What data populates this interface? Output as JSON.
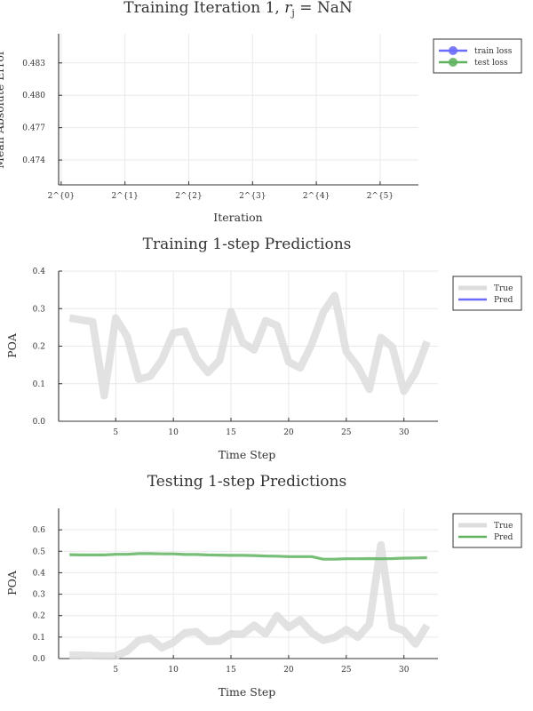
{
  "chart_data": [
    {
      "type": "line",
      "title": "Training Iteration 1, ",
      "title_symbol": "r",
      "title_subscript": "j",
      "title_value": " = NaN",
      "xlabel": "Iteration",
      "ylabel": "Mean Absolute Error",
      "x_tick_labels": [
        "2^{0}",
        "2^{1}",
        "2^{2}",
        "2^{3}",
        "2^{4}",
        "2^{5}"
      ],
      "x_scale": "log2",
      "y_ticks": [
        0.474,
        0.477,
        0.48,
        0.483
      ],
      "y_tick_labels": [
        "0.474",
        "0.477",
        "0.480",
        "0.483"
      ],
      "ylim": [
        0.4717,
        0.4857
      ],
      "grid": true,
      "legend_position": "top-right (outside)",
      "series": [
        {
          "name": "train loss",
          "color": "#6b6bff",
          "marker": "circle",
          "x": [],
          "y": []
        },
        {
          "name": "test loss",
          "color": "#5fb35f",
          "marker": "circle",
          "x": [],
          "y": []
        }
      ]
    },
    {
      "type": "line",
      "title": "Training 1-step Predictions",
      "xlabel": "Time Step",
      "ylabel": "POA",
      "x_ticks": [
        5,
        10,
        15,
        20,
        25,
        30
      ],
      "x_tick_labels": [
        "5",
        "10",
        "15",
        "20",
        "25",
        "30"
      ],
      "xlim": [
        0.05,
        32.95
      ],
      "y_ticks": [
        0.0,
        0.1,
        0.2,
        0.3,
        0.4
      ],
      "y_tick_labels": [
        "0.0",
        "0.1",
        "0.2",
        "0.3",
        "0.4"
      ],
      "ylim": [
        0,
        0.4
      ],
      "grid": true,
      "legend_position": "top-right (outside)",
      "series": [
        {
          "name": "True",
          "color": "#dddddd",
          "line_width": "thick",
          "x": [
            1,
            2,
            3,
            4,
            5,
            6,
            7,
            8,
            9,
            10,
            11,
            12,
            13,
            14,
            15,
            16,
            17,
            18,
            19,
            20,
            21,
            22,
            23,
            24,
            25,
            26,
            27,
            28,
            29,
            30,
            31,
            32
          ],
          "y": [
            0.275,
            0.27,
            0.265,
            0.068,
            0.275,
            0.225,
            0.112,
            0.12,
            0.163,
            0.235,
            0.24,
            0.168,
            0.13,
            0.162,
            0.292,
            0.21,
            0.19,
            0.268,
            0.255,
            0.158,
            0.142,
            0.205,
            0.29,
            0.335,
            0.185,
            0.145,
            0.085,
            0.223,
            0.198,
            0.08,
            0.13,
            0.212
          ]
        },
        {
          "name": "Pred",
          "color": "#6b6bff",
          "line_width": "medium",
          "x": [],
          "y": []
        }
      ]
    },
    {
      "type": "line",
      "title": "Testing 1-step Predictions",
      "xlabel": "Time Step",
      "ylabel": "POA",
      "x_ticks": [
        5,
        10,
        15,
        20,
        25,
        30
      ],
      "x_tick_labels": [
        "5",
        "10",
        "15",
        "20",
        "25",
        "30"
      ],
      "xlim": [
        0.05,
        32.95
      ],
      "y_ticks": [
        0.0,
        0.1,
        0.2,
        0.3,
        0.4,
        0.5,
        0.6
      ],
      "y_tick_labels": [
        "0.0",
        "0.1",
        "0.2",
        "0.3",
        "0.4",
        "0.5",
        "0.6"
      ],
      "ylim": [
        0,
        0.7
      ],
      "grid": true,
      "legend_position": "top-right (outside)",
      "series": [
        {
          "name": "True",
          "color": "#dddddd",
          "line_width": "thick",
          "x": [
            1,
            2,
            3,
            4,
            5,
            6,
            7,
            8,
            9,
            10,
            11,
            12,
            13,
            14,
            15,
            16,
            17,
            18,
            19,
            20,
            21,
            22,
            23,
            24,
            25,
            26,
            27,
            28,
            29,
            30,
            31,
            32
          ],
          "y": [
            0.016,
            0.016,
            0.014,
            0.012,
            0.012,
            0.035,
            0.085,
            0.095,
            0.05,
            0.075,
            0.12,
            0.125,
            0.08,
            0.082,
            0.115,
            0.113,
            0.155,
            0.115,
            0.2,
            0.145,
            0.18,
            0.12,
            0.085,
            0.098,
            0.135,
            0.1,
            0.16,
            0.53,
            0.15,
            0.13,
            0.068,
            0.155
          ]
        },
        {
          "name": "Pred",
          "color": "#5fb35f",
          "line_width": "medium",
          "x": [
            1,
            2,
            3,
            4,
            5,
            6,
            7,
            8,
            9,
            10,
            11,
            12,
            13,
            14,
            15,
            16,
            17,
            18,
            19,
            20,
            21,
            22,
            23,
            24,
            25,
            26,
            27,
            28,
            29,
            30,
            31,
            32
          ],
          "y": [
            0.484,
            0.483,
            0.483,
            0.483,
            0.486,
            0.486,
            0.489,
            0.489,
            0.488,
            0.488,
            0.485,
            0.485,
            0.483,
            0.482,
            0.481,
            0.481,
            0.48,
            0.478,
            0.477,
            0.475,
            0.475,
            0.475,
            0.463,
            0.463,
            0.465,
            0.465,
            0.466,
            0.465,
            0.466,
            0.468,
            0.469,
            0.47
          ]
        }
      ]
    }
  ]
}
